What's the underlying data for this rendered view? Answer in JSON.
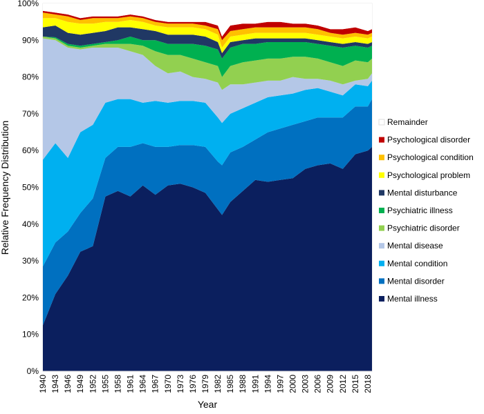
{
  "chart_data": {
    "type": "area",
    "stacked": true,
    "title": "",
    "xlabel": "Year",
    "ylabel": "Relative Frequency Distribution",
    "ylim": [
      0,
      100
    ],
    "xlim": [
      1940,
      2019
    ],
    "y_ticks": [
      "0%",
      "10%",
      "20%",
      "30%",
      "40%",
      "50%",
      "60%",
      "70%",
      "80%",
      "90%",
      "100%"
    ],
    "x_ticks": [
      "1940",
      "1943",
      "1946",
      "1949",
      "1952",
      "1955",
      "1958",
      "1961",
      "1964",
      "1967",
      "1970",
      "1973",
      "1976",
      "1979",
      "1982",
      "1985",
      "1988",
      "1991",
      "1994",
      "1997",
      "2000",
      "2003",
      "2006",
      "2009",
      "2012",
      "2015",
      "2018"
    ],
    "grid": false,
    "legend_placement": "right",
    "x": [
      1940,
      1943,
      1946,
      1949,
      1952,
      1955,
      1958,
      1961,
      1964,
      1967,
      1970,
      1973,
      1976,
      1979,
      1982,
      1983,
      1985,
      1988,
      1991,
      1994,
      1997,
      2000,
      2003,
      2006,
      2009,
      2012,
      2015,
      2018,
      2019
    ],
    "series": [
      {
        "name": "Mental illness",
        "color": "#0b1f5e",
        "values": [
          12.5,
          21,
          26,
          32.5,
          34,
          47.5,
          49,
          47.5,
          50.5,
          48,
          50.5,
          51,
          50,
          48.5,
          44,
          42.5,
          46,
          49,
          52,
          51.5,
          52,
          52.5,
          55,
          56,
          56.5,
          55,
          59,
          60,
          61
        ]
      },
      {
        "name": "Mental disorder",
        "color": "#0070c0",
        "values": [
          16,
          14,
          12,
          10.5,
          13,
          10.5,
          12,
          13.5,
          11.5,
          13,
          10.5,
          10.5,
          11.5,
          12.5,
          13,
          13.5,
          13.5,
          12,
          11,
          13.5,
          14,
          14.5,
          13,
          13,
          12.5,
          14,
          13,
          12,
          13
        ]
      },
      {
        "name": "Mental condition",
        "color": "#00b0f0",
        "values": [
          29,
          27,
          20,
          22,
          20,
          15,
          13,
          13,
          11,
          12.5,
          12,
          12,
          12,
          12,
          12,
          11.5,
          10.5,
          10.5,
          10,
          9.5,
          9,
          8.5,
          8.5,
          8,
          7,
          6,
          6,
          5.5,
          5
        ]
      },
      {
        "name": "Mental disease",
        "color": "#b4c7e7",
        "values": [
          33,
          28,
          30,
          22.5,
          21,
          15,
          14,
          13,
          13,
          9.5,
          8,
          8,
          6.5,
          6.5,
          9.5,
          9,
          8,
          6.5,
          5.5,
          4.5,
          4,
          4.5,
          3,
          2.5,
          3,
          3,
          1,
          2,
          2
        ]
      },
      {
        "name": "Psychiatric disorder",
        "color": "#92d050",
        "values": [
          0.5,
          0.5,
          0.5,
          0.5,
          0.5,
          1,
          1,
          2,
          2.5,
          4,
          5,
          4.5,
          5,
          4.5,
          4.5,
          3.5,
          5,
          6,
          6,
          6,
          6,
          5.5,
          6,
          5.5,
          5,
          5,
          5.5,
          4.5,
          4
        ]
      },
      {
        "name": "Psychiatric illness",
        "color": "#00b050",
        "values": [
          0,
          0.3,
          0.5,
          0.5,
          0.5,
          0.5,
          1,
          2,
          1.5,
          3,
          3,
          3,
          4,
          4.5,
          4.5,
          5,
          5,
          5,
          4.5,
          4.5,
          4.5,
          4,
          4,
          4,
          4.5,
          5,
          4,
          4,
          3.5
        ]
      },
      {
        "name": "Mental disturbance",
        "color": "#203864",
        "values": [
          2.5,
          3.2,
          3,
          3,
          3,
          3,
          3.5,
          2.5,
          3,
          2.5,
          2.5,
          2.5,
          2.5,
          2.5,
          2,
          1.5,
          1.5,
          1,
          1.5,
          1,
          1,
          1,
          1,
          1,
          1,
          1,
          1,
          1,
          1
        ]
      },
      {
        "name": "Psychological problem",
        "color": "#ffff00",
        "values": [
          2.5,
          2,
          3,
          3,
          2.5,
          2.5,
          1.5,
          2,
          2,
          1.5,
          2,
          2,
          2,
          2,
          2,
          1.5,
          1.5,
          1.5,
          1.5,
          1.5,
          1.5,
          1.5,
          1.5,
          1.5,
          1.5,
          1.5,
          1.5,
          1.5,
          1.5
        ]
      },
      {
        "name": "Psychological condition",
        "color": "#ffc000",
        "values": [
          1.5,
          1,
          1.5,
          1,
          1.5,
          1,
          1,
          1,
          1,
          1,
          1,
          1,
          1,
          1,
          1.5,
          2,
          1.5,
          1.5,
          1.5,
          1.5,
          1.5,
          1.5,
          1.5,
          1.5,
          1,
          1,
          1,
          1,
          1
        ]
      },
      {
        "name": "Psychological disorder",
        "color": "#c00000",
        "values": [
          0.5,
          0.5,
          0.5,
          0.5,
          0.5,
          0.5,
          0.5,
          0.5,
          0.5,
          0.5,
          0.5,
          0.5,
          0.5,
          1,
          1,
          1,
          1.5,
          1.5,
          1,
          1.5,
          1.5,
          1,
          1,
          1,
          1,
          1.5,
          1.5,
          1,
          1
        ]
      },
      {
        "name": "Remainder",
        "color": "#ffffff",
        "values": [
          2,
          2.5,
          3,
          4,
          3.5,
          3.5,
          3.5,
          3,
          3.5,
          4.5,
          5,
          5,
          5,
          5,
          6,
          9,
          6,
          5.5,
          5.5,
          5,
          5,
          5.5,
          5.5,
          6,
          7,
          7,
          6.5,
          7.5,
          7
        ]
      }
    ]
  }
}
